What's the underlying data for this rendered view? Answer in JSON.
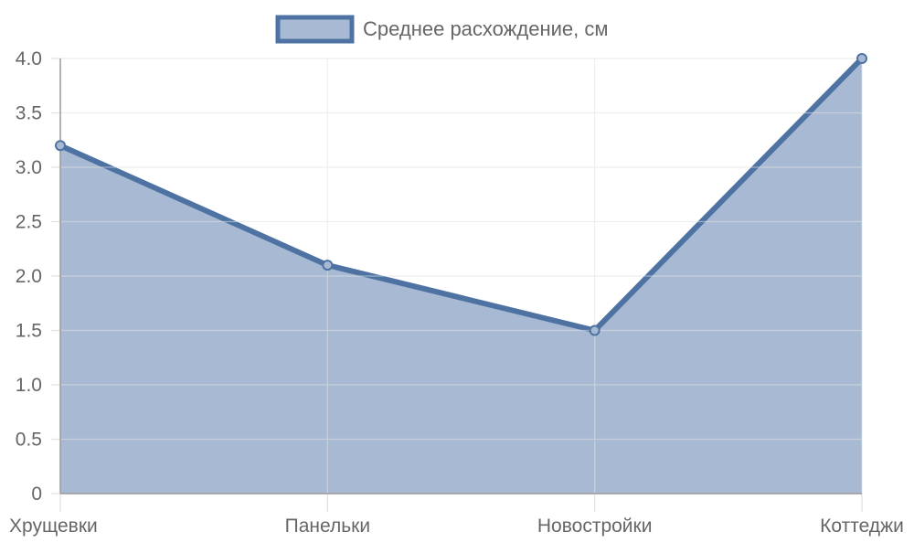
{
  "chart_data": {
    "type": "area",
    "categories": [
      "Хрущевки",
      "Панельки",
      "Новостройки",
      "Коттеджи"
    ],
    "series": [
      {
        "name": "Среднее расхождение, см",
        "values": [
          3.2,
          2.1,
          1.5,
          4.0
        ]
      }
    ],
    "ylim": [
      0,
      4.0
    ],
    "yticks": [
      "0",
      "0.5",
      "1.0",
      "1.5",
      "2.0",
      "2.5",
      "3.0",
      "3.5",
      "4.0"
    ],
    "grid": true,
    "legend_position": "top",
    "colors": {
      "line": "#4e73a3",
      "fill": "#a8bad3",
      "grid": "#e1e1e1",
      "axis": "#9a9a9a",
      "text": "#666666"
    }
  }
}
